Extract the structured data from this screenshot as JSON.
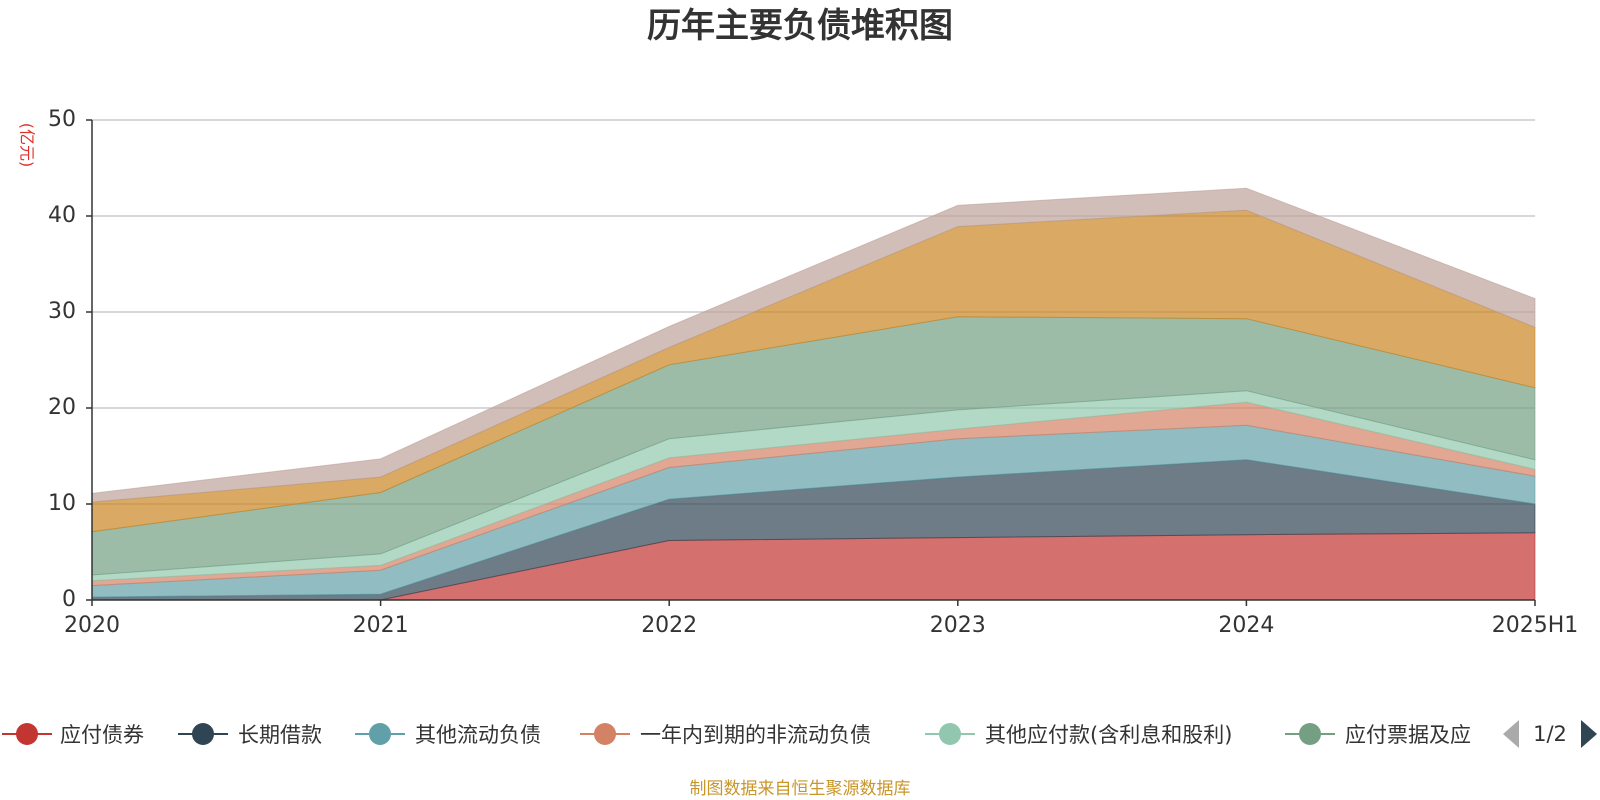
{
  "chart_data": {
    "type": "area",
    "title": "历年主要负债堆积图",
    "unit_label": "(亿元)",
    "x": [
      "2020",
      "2021",
      "2022",
      "2023",
      "2024",
      "2025H1"
    ],
    "ylim": [
      0,
      50
    ],
    "yticks": [
      "0",
      "10",
      "20",
      "30",
      "40",
      "50"
    ],
    "grid": true,
    "stacked": true,
    "legend_position": "bottom",
    "legend_page": "1/2",
    "series": [
      {
        "name": "应付债券",
        "color": "#c23531",
        "values": [
          0,
          0,
          6.2,
          6.5,
          6.8,
          7.0
        ]
      },
      {
        "name": "长期借款",
        "color": "#2f4554",
        "values": [
          0.3,
          0.6,
          4.3,
          6.3,
          7.8,
          3.0
        ]
      },
      {
        "name": "其他流动负债",
        "color": "#61a0a8",
        "values": [
          1.2,
          2.5,
          3.3,
          4.0,
          3.6,
          2.9
        ]
      },
      {
        "name": "一年内到期的非流动负债",
        "color": "#d48265",
        "values": [
          0.5,
          0.5,
          1.0,
          1.0,
          2.4,
          0.7
        ]
      },
      {
        "name": "其他应付款(含利息和股利)",
        "color": "#91c7ae",
        "values": [
          0.6,
          1.2,
          2.0,
          2.0,
          1.2,
          1.0
        ]
      },
      {
        "name": "应付票据及应付账款",
        "color": "#749f83",
        "values": [
          4.5,
          6.4,
          7.7,
          9.7,
          7.5,
          7.5
        ]
      },
      {
        "name": "",
        "color": "#ca8622",
        "values": [
          3.1,
          1.6,
          1.8,
          9.4,
          11.3,
          6.3
        ]
      },
      {
        "name": "",
        "color": "#bda29a",
        "values": [
          0.9,
          1.9,
          2.2,
          2.2,
          2.3,
          3.0
        ]
      }
    ],
    "legend_shown": [
      "应付债券",
      "长期借款",
      "其他流动负债",
      "一年内到期的非流动负债",
      "其他应付款(含利息和股利)",
      "应付票据及应付账款"
    ],
    "legend_visible_text": "应付票据及应",
    "source_note": "制图数据来自恒生聚源数据库"
  }
}
